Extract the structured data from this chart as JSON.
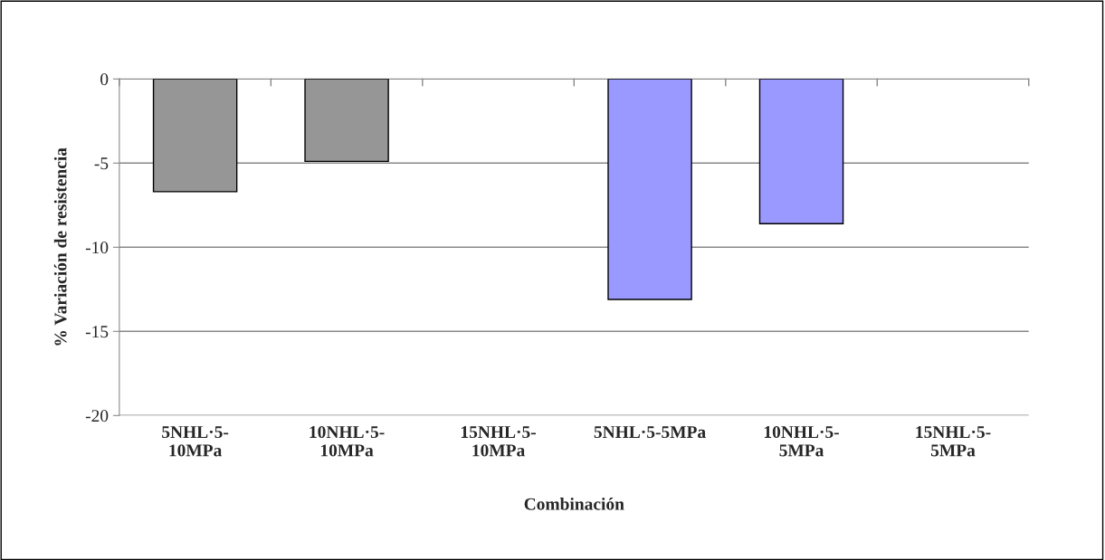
{
  "chart_data": {
    "type": "bar",
    "categories": [
      "5NHL·5-\n10MPa",
      "10NHL·5-\n10MPa",
      "15NHL·5-\n10MPa",
      "5NHL·5-5MPa",
      "10NHL·5-\n5MPa",
      "15NHL·5-\n5MPa"
    ],
    "values": [
      -6.7,
      -4.9,
      null,
      -13.1,
      -8.6,
      null
    ],
    "colors": [
      "#969696",
      "#969696",
      "#969696",
      "#9999ff",
      "#9999ff",
      "#9999ff"
    ],
    "xlabel": "Combinación",
    "ylabel": "% Variación de resistencia",
    "ylim": [
      -20,
      0
    ],
    "yticks": [
      -20,
      -15,
      -10,
      -5,
      0
    ],
    "grid": "y",
    "legend": false
  }
}
